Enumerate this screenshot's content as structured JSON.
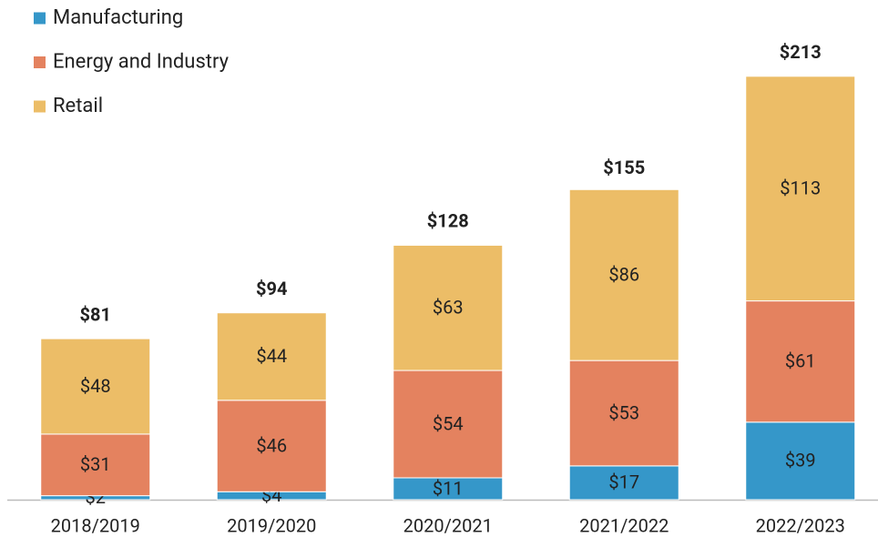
{
  "chart_data": {
    "type": "stacked_bar",
    "categories": [
      "2018/2019",
      "2019/2020",
      "2020/2021",
      "2021/2022",
      "2022/2023"
    ],
    "series": [
      {
        "name": "Manufacturing",
        "color": "#3597c9",
        "values": [
          2,
          4,
          11,
          17,
          39
        ],
        "value_labels": [
          "$2",
          "$4",
          "$11",
          "$17",
          "$39"
        ]
      },
      {
        "name": "Energy and Industry",
        "color": "#e4825f",
        "values": [
          31,
          46,
          54,
          53,
          61
        ],
        "value_labels": [
          "$31",
          "$46",
          "$54",
          "$53",
          "$61"
        ]
      },
      {
        "name": "Retail",
        "color": "#ecbd67",
        "values": [
          48,
          44,
          63,
          86,
          113
        ],
        "value_labels": [
          "$48",
          "$44",
          "$63",
          "$86",
          "$113"
        ]
      }
    ],
    "totals": [
      81,
      94,
      128,
      155,
      213
    ],
    "total_labels": [
      "$81",
      "$94",
      "$128",
      "$155",
      "$213"
    ],
    "ylim": [
      0,
      250
    ]
  }
}
